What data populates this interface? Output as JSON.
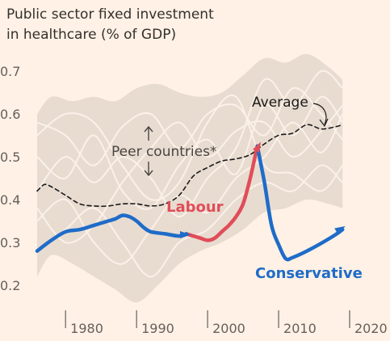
{
  "chart_data": {
    "type": "line",
    "title": "Public sector fixed investment\nin healthcare (% of GDP)",
    "xlabel": "",
    "ylabel": "",
    "xlim": [
      1976,
      2020
    ],
    "ylim": [
      0.16,
      0.74
    ],
    "x_ticks": [
      1980,
      1990,
      2000,
      2010,
      2020
    ],
    "y_ticks": [
      0.2,
      0.3,
      0.4,
      0.5,
      0.6,
      0.7
    ],
    "grid": false,
    "colors": {
      "background": "#fff1e5",
      "band": "#e8dcd1",
      "peer_lines": "#fbf1e8",
      "average": "#1a1a1a",
      "labour": "#e04d58",
      "conservative": "#1f6cc8",
      "text": "#33302e",
      "axis": "#66605c"
    },
    "band": {
      "name": "Peer countries*",
      "x": [
        1976,
        1978,
        1981,
        1984,
        1987,
        1990,
        1993,
        1996,
        1999,
        2002,
        2005,
        2008,
        2011,
        2014,
        2017,
        2019
      ],
      "upper": [
        0.6,
        0.64,
        0.63,
        0.64,
        0.63,
        0.66,
        0.67,
        0.65,
        0.64,
        0.65,
        0.69,
        0.73,
        0.72,
        0.74,
        0.71,
        0.68
      ],
      "lower": [
        0.22,
        0.27,
        0.25,
        0.22,
        0.19,
        0.16,
        0.2,
        0.25,
        0.28,
        0.3,
        0.33,
        0.37,
        0.38,
        0.4,
        0.39,
        0.38
      ]
    },
    "peer_series": [
      {
        "x": [
          1976,
          1980,
          1984,
          1988,
          1992,
          1996,
          2000,
          2004,
          2008,
          2012,
          2016,
          2019
        ],
        "values": [
          0.5,
          0.45,
          0.55,
          0.42,
          0.38,
          0.48,
          0.54,
          0.46,
          0.62,
          0.55,
          0.64,
          0.58
        ]
      },
      {
        "x": [
          1976,
          1980,
          1984,
          1988,
          1992,
          1996,
          2000,
          2004,
          2008,
          2012,
          2016,
          2019
        ],
        "values": [
          0.35,
          0.4,
          0.3,
          0.25,
          0.33,
          0.41,
          0.37,
          0.45,
          0.5,
          0.58,
          0.51,
          0.6
        ]
      },
      {
        "x": [
          1976,
          1980,
          1984,
          1988,
          1992,
          1996,
          2000,
          2004,
          2008,
          2012,
          2016,
          2019
        ],
        "values": [
          0.58,
          0.55,
          0.48,
          0.57,
          0.6,
          0.52,
          0.6,
          0.62,
          0.55,
          0.66,
          0.6,
          0.54
        ]
      },
      {
        "x": [
          1976,
          1980,
          1984,
          1988,
          1992,
          1996,
          2000,
          2004,
          2008,
          2012,
          2016,
          2019
        ],
        "values": [
          0.28,
          0.33,
          0.38,
          0.3,
          0.22,
          0.3,
          0.33,
          0.4,
          0.44,
          0.42,
          0.48,
          0.44
        ]
      },
      {
        "x": [
          1976,
          1980,
          1984,
          1988,
          1992,
          1996,
          2000,
          2004,
          2008,
          2012,
          2016,
          2019
        ],
        "values": [
          0.42,
          0.5,
          0.44,
          0.5,
          0.45,
          0.36,
          0.45,
          0.52,
          0.68,
          0.62,
          0.7,
          0.66
        ]
      },
      {
        "x": [
          1976,
          1980,
          1984,
          1988,
          1992,
          1996,
          2000,
          2004,
          2008,
          2012,
          2016,
          2019
        ],
        "values": [
          0.38,
          0.3,
          0.34,
          0.44,
          0.52,
          0.58,
          0.5,
          0.56,
          0.58,
          0.5,
          0.56,
          0.62
        ]
      },
      {
        "x": [
          1976,
          1980,
          1984,
          1988,
          1992,
          1996,
          2000,
          2004,
          2008,
          2012,
          2016,
          2019
        ],
        "values": [
          0.55,
          0.6,
          0.58,
          0.48,
          0.4,
          0.44,
          0.58,
          0.64,
          0.48,
          0.46,
          0.42,
          0.48
        ]
      }
    ],
    "series": [
      {
        "name": "Average",
        "style": "dashed",
        "x": [
          1976,
          1977,
          1978,
          1980,
          1982,
          1984,
          1986,
          1988,
          1990,
          1992,
          1994,
          1996,
          1998,
          2000,
          2002,
          2004,
          2006,
          2008,
          2010,
          2012,
          2014,
          2016,
          2018,
          2019
        ],
        "values": [
          0.42,
          0.435,
          0.43,
          0.41,
          0.39,
          0.385,
          0.385,
          0.39,
          0.39,
          0.385,
          0.39,
          0.41,
          0.455,
          0.475,
          0.49,
          0.495,
          0.505,
          0.53,
          0.55,
          0.555,
          0.575,
          0.565,
          0.57,
          0.575
        ]
      },
      {
        "name": "Labour",
        "style": "solid",
        "x": [
          1997,
          1998,
          1999,
          2000,
          2001,
          2002,
          2003,
          2004,
          2005,
          2006,
          2007
        ],
        "values": [
          0.32,
          0.315,
          0.31,
          0.305,
          0.31,
          0.325,
          0.34,
          0.36,
          0.39,
          0.45,
          0.525
        ]
      },
      {
        "name": "Conservative",
        "style": "solid",
        "x": [
          1976,
          1978,
          1980,
          1982,
          1984,
          1986,
          1987,
          1988,
          1989,
          1990,
          1991,
          1992,
          1994,
          1996,
          1997,
          2007,
          2008,
          2009,
          2010,
          2011,
          2012,
          2014,
          2016,
          2018,
          2019
        ],
        "values": [
          0.28,
          0.305,
          0.325,
          0.33,
          0.34,
          0.35,
          0.355,
          0.363,
          0.36,
          0.35,
          0.335,
          0.325,
          0.32,
          0.315,
          0.32,
          0.525,
          0.44,
          0.34,
          0.295,
          0.262,
          0.265,
          0.28,
          0.298,
          0.318,
          0.33
        ]
      }
    ],
    "annotations": [
      {
        "id": "average",
        "text": "Average"
      },
      {
        "id": "peer",
        "text": "Peer countries*"
      },
      {
        "id": "labour",
        "text": "Labour"
      },
      {
        "id": "conservative",
        "text": "Conservative"
      }
    ]
  }
}
